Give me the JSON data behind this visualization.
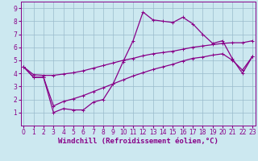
{
  "xlabel": "Windchill (Refroidissement éolien,°C)",
  "bg_color": "#cce8f0",
  "line_color": "#880088",
  "grid_color": "#99bbcc",
  "x_ticks": [
    0,
    1,
    2,
    3,
    4,
    5,
    6,
    7,
    8,
    9,
    10,
    11,
    12,
    13,
    14,
    15,
    16,
    17,
    18,
    19,
    20,
    21,
    22,
    23
  ],
  "y_ticks": [
    1,
    2,
    3,
    4,
    5,
    6,
    7,
    8,
    9
  ],
  "xlim": [
    -0.3,
    23.3
  ],
  "ylim": [
    0,
    9.5
  ],
  "main_y": [
    4.5,
    3.7,
    3.7,
    1.0,
    1.3,
    1.2,
    1.2,
    1.8,
    2.0,
    3.2,
    4.9,
    6.5,
    8.7,
    8.1,
    8.0,
    7.9,
    8.3,
    7.8,
    7.0,
    6.3,
    6.5,
    5.1,
    4.0,
    5.3
  ],
  "upper_y": [
    4.5,
    3.9,
    3.85,
    3.85,
    3.95,
    4.05,
    4.2,
    4.4,
    4.6,
    4.8,
    5.0,
    5.15,
    5.35,
    5.5,
    5.6,
    5.7,
    5.85,
    6.0,
    6.1,
    6.2,
    6.3,
    6.35,
    6.35,
    6.5
  ],
  "lower_y": [
    4.5,
    3.7,
    3.7,
    1.5,
    1.85,
    2.05,
    2.3,
    2.6,
    2.9,
    3.2,
    3.5,
    3.8,
    4.05,
    4.3,
    4.5,
    4.7,
    4.95,
    5.15,
    5.25,
    5.4,
    5.5,
    5.0,
    4.25,
    5.3
  ],
  "tick_fontsize": 5.5,
  "label_fontsize": 6.5,
  "linewidth": 0.9,
  "markersize": 2.5
}
